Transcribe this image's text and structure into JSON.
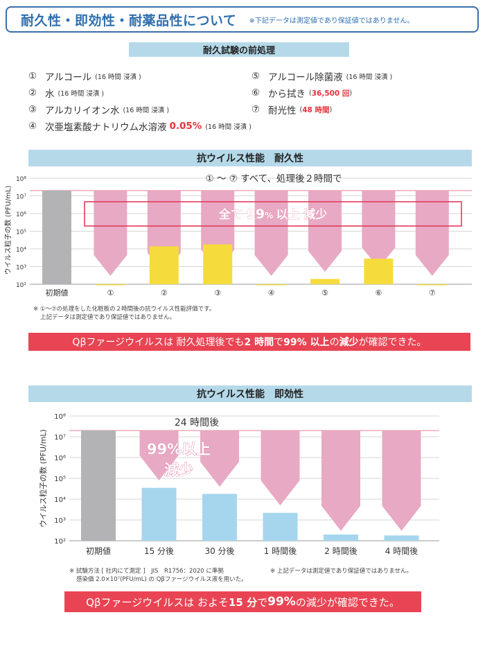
{
  "header": {
    "title": "耐久性・即効性・耐薬品性について",
    "note": "※下記データは測定値であり保証値ではありません。"
  },
  "pretreatment": {
    "heading": "耐久試験の前処理",
    "items": [
      {
        "num": "①",
        "text": "アルコール",
        "sub": "(16 時間 浸漬 )"
      },
      {
        "num": "②",
        "text": "水",
        "sub": "(16 時間 浸漬 )"
      },
      {
        "num": "③",
        "text": "アルカリイオン水",
        "sub": "(16 時間 浸漬 )"
      },
      {
        "num": "④",
        "text": "次亜塩素酸ナトリウム水溶液",
        "highlight": "0.05%",
        "sub": "(16 時間 浸漬 )"
      },
      {
        "num": "⑤",
        "text": "アルコール除菌液",
        "sub": "(16 時間 浸漬 )"
      },
      {
        "num": "⑥",
        "text": "から拭き",
        "open": "(",
        "highlight": "36,500 回",
        "close": ")"
      },
      {
        "num": "⑦",
        "text": "耐光性",
        "open": "(",
        "highlight": "48 時間",
        "close": ")"
      }
    ]
  },
  "durability": {
    "heading": "抗ウイルス性能　耐久性",
    "annotation_top": "① ～ ⑦  すべて、処理後２時間で",
    "callout": {
      "a": "全て ",
      "b": "99",
      "c": "% ",
      "d": "以上 減少"
    },
    "footnote_1": "※ ①～⑦の処理をした化粧板の２時間後の抗ウイルス性能評価です。",
    "footnote_2": "上記データは測定値であり保証値ではありません。",
    "banner": {
      "p1": "Qβファージウイルスは 耐久処理後でも ",
      "b1": "2 時間",
      "p2": "で ",
      "b2": "99% 以上",
      "p3": "の",
      "b3": "減少",
      "p4": "が確認できた。"
    }
  },
  "immediacy": {
    "heading": "抗ウイルス性能　即効性",
    "annotation_top": "24 時間後",
    "callout_1": "99%以上",
    "callout_2": "減少",
    "footnote_left_1": "※ 試験方法 [ 社内にて測定 ]　JIS　R1756：2020 に準拠",
    "footnote_left_2": "感染価 2.0×10⁷(PFU/mL) の Qβファージウイルス液を用いた。",
    "footnote_right": "※ 上記データは測定値であり保証値ではありません。",
    "banner": {
      "p1": "Qβファージウイルスは およそ ",
      "b1": "15 分",
      "p2": "で ",
      "b2": "99%",
      "p3": " の減少が確認できた。"
    }
  },
  "chart_data": [
    {
      "type": "bar",
      "title": "抗ウイルス性能　耐久性",
      "ylabel": "ウイルス粒子の数 (PFU/mL)",
      "yscale": "log",
      "ylim": [
        100,
        100000000
      ],
      "y_ticks": [
        "10²",
        "10³",
        "10⁴",
        "10⁵",
        "10⁶",
        "10⁷",
        "10⁸"
      ],
      "categories": [
        "初期値",
        "①",
        "②",
        "③",
        "④",
        "⑤",
        "⑥",
        "⑦"
      ],
      "values": [
        20000000,
        100,
        14000,
        18000,
        100,
        200,
        2800,
        100
      ],
      "reduction_arrow_tip_values": [
        null,
        300,
        400,
        600,
        300,
        500,
        800,
        300
      ],
      "reference_line": 20000000,
      "colors": {
        "initial": "#b3b3b5",
        "after": "#f5dc3c",
        "arrow": "#e8a9c4",
        "ref_line": "#e77d93",
        "highlight_box": "#e23b5c"
      },
      "grid": true
    },
    {
      "type": "bar",
      "title": "抗ウイルス性能　即効性",
      "ylabel": "ウイルス粒子の数 (PFU/mL)",
      "yscale": "log",
      "ylim": [
        100,
        100000000
      ],
      "y_ticks": [
        "10²",
        "10³",
        "10⁴",
        "10⁵",
        "10⁶",
        "10⁷",
        "10⁸"
      ],
      "categories": [
        "初期値",
        "15 分後",
        "30 分後",
        "1 時間後",
        "2 時間後",
        "4 時間後"
      ],
      "values": [
        20000000,
        35000,
        18000,
        2200,
        200,
        180
      ],
      "reduction_arrow_tip_values": [
        null,
        80000,
        40000,
        5000,
        300,
        300
      ],
      "reference_line": 20000000,
      "colors": {
        "initial": "#b3b3b5",
        "after": "#a5d6ed",
        "arrow": "#e8a9c4",
        "ref_line": "#e77d93"
      },
      "grid": true
    }
  ]
}
